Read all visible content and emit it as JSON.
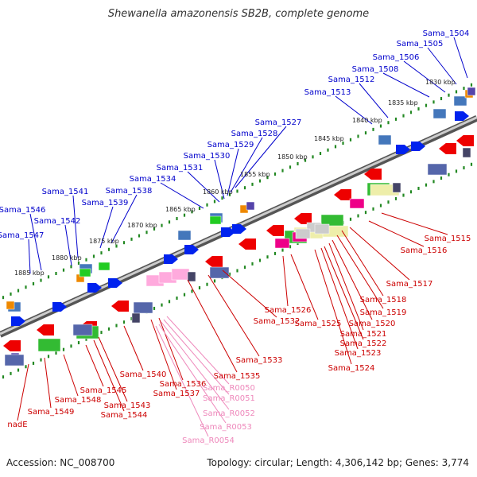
{
  "title": "Shewanella amazonensis SB2B, complete genome",
  "footer": {
    "accession": "Accession: NC_008700",
    "summary": "Topology: circular; Length: 4,306,142 bp; Genes: 3,774"
  },
  "colors": {
    "forward_label": "#0000cc",
    "reverse_label": "#cc0000",
    "rna_label": "#ee88bb",
    "black_label": "#cc0000",
    "tick": "#228822",
    "backbone": "#777777"
  },
  "scale_labels": [
    "1830 kbp",
    "1835 kbp",
    "1840 kbp",
    "1845 kbp",
    "1850 kbp",
    "1855 kbp",
    "1860 kbp",
    "1865 kbp",
    "1870 kbp",
    "1875 kbp",
    "1880 kbp",
    "1885 kbp"
  ],
  "forward_genes": [
    "Sama_1504",
    "Sama_1505",
    "Sama_1506",
    "Sama_1508",
    "Sama_1512",
    "Sama_1513",
    "Sama_1527",
    "Sama_1528",
    "Sama_1529",
    "Sama_1530",
    "Sama_1531",
    "Sama_1534",
    "Sama_1538",
    "Sama_1539",
    "Sama_1541",
    "Sama_1542",
    "Sama_1546",
    "Sama_1547"
  ],
  "reverse_genes": [
    "Sama_1515",
    "Sama_1516",
    "Sama_1517",
    "Sama_1518",
    "Sama_1519",
    "Sama_1520",
    "Sama_1521",
    "Sama_1522",
    "Sama_1523",
    "Sama_1524",
    "Sama_1525",
    "Sama_1526",
    "Sama_1532",
    "Sama_1533",
    "Sama_1535",
    "Sama_1536",
    "Sama_1537",
    "Sama_1540",
    "Sama_1543",
    "Sama_1544",
    "Sama_1545",
    "Sama_1548",
    "Sama_1549",
    "nadE"
  ],
  "rna_genes": [
    "Sama_R0050",
    "Sama_R0051",
    "Sama_R0052",
    "Sama_R0053",
    "Sama_R0054"
  ]
}
